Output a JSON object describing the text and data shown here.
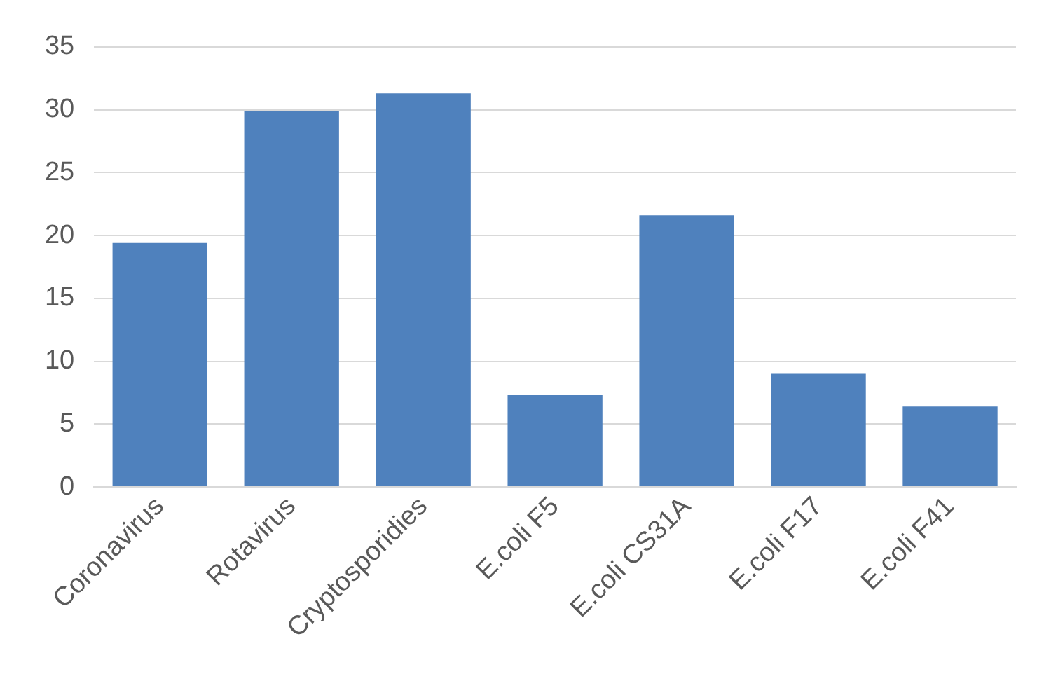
{
  "chart_data": {
    "type": "bar",
    "categories": [
      "Coronavirus",
      "Rotavirus",
      "Cryptosporidies",
      "E.coli F5",
      "E.coli CS31A",
      "E.coli F17",
      "E.coli F41"
    ],
    "values": [
      19.4,
      29.9,
      31.3,
      7.3,
      21.6,
      9.0,
      6.4
    ],
    "color": "#4f81bd",
    "ylim": [
      0,
      35
    ],
    "yticks": [
      0,
      5,
      10,
      15,
      20,
      25,
      30,
      35
    ],
    "grid": "y",
    "legend": false
  }
}
